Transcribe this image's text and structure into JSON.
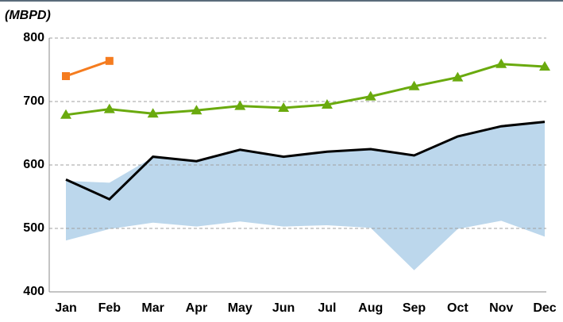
{
  "chart_data": {
    "type": "line",
    "ylabel": "(MBPD)",
    "categories": [
      "Jan",
      "Feb",
      "Mar",
      "Apr",
      "May",
      "Jun",
      "Jul",
      "Aug",
      "Sep",
      "Oct",
      "Nov",
      "Dec"
    ],
    "band": {
      "color": "#bcd7ec",
      "upper": [
        575,
        572,
        612,
        605,
        623,
        613,
        621,
        625,
        615,
        645,
        661,
        668
      ],
      "lower": [
        481,
        499,
        509,
        503,
        511,
        503,
        505,
        501,
        434,
        499,
        512,
        487
      ]
    },
    "series": [
      {
        "color": "#000000",
        "marker": "none",
        "values": [
          577,
          546,
          613,
          606,
          624,
          613,
          621,
          625,
          615,
          645,
          661,
          668
        ]
      },
      {
        "color": "#6aaa0e",
        "marker": "triangle",
        "values": [
          679,
          688,
          681,
          686,
          693,
          690,
          695,
          708,
          724,
          738,
          759,
          755
        ]
      },
      {
        "color": "#f57c1f",
        "marker": "square",
        "values": [
          740,
          764,
          null,
          null,
          null,
          null,
          null,
          null,
          null,
          null,
          null,
          null
        ]
      }
    ],
    "ylim": [
      400,
      800
    ],
    "yticks": [
      400,
      500,
      600,
      700,
      800
    ],
    "grid": true
  }
}
